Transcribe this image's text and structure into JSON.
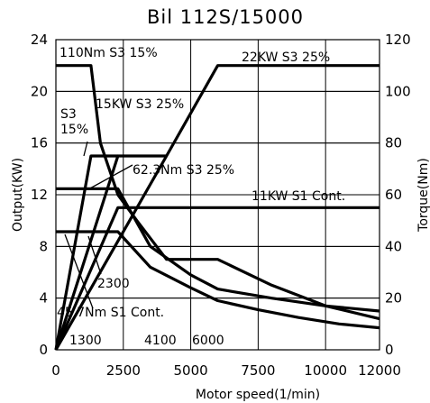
{
  "chart_data": {
    "type": "line",
    "title": "Bil 112S/15000",
    "xlabel": "Motor speed(1/min)",
    "ylabel": "Output(KW)",
    "ylabel_right": "Torque(Nm)",
    "xlim": [
      0,
      12000
    ],
    "ylim": [
      0,
      24
    ],
    "ylim_right": [
      0,
      120
    ],
    "xticks": [
      0,
      2500,
      5000,
      7500,
      10000,
      12000
    ],
    "yticks": [
      0,
      4,
      8,
      12,
      16,
      20,
      24
    ],
    "yticks_right": [
      0,
      20,
      40,
      60,
      80,
      100,
      120
    ],
    "grid": true,
    "series": [
      {
        "name": "22KW S3 25%",
        "axis": "left",
        "x": [
          0,
          4100,
          6000,
          12000
        ],
        "y": [
          0,
          15,
          22,
          22
        ]
      },
      {
        "name": "15KW S3 25%",
        "axis": "left",
        "x": [
          0,
          2300,
          4100
        ],
        "y": [
          0,
          15,
          15
        ]
      },
      {
        "name": "S3 15%",
        "axis": "left",
        "x": [
          0,
          1300,
          2300
        ],
        "y": [
          0,
          15,
          15
        ]
      },
      {
        "name": "11KW S1 Cont.",
        "axis": "left",
        "x": [
          0,
          2300,
          12000
        ],
        "y": [
          0,
          11,
          11
        ]
      },
      {
        "name": "110Nm S3 15%",
        "axis": "right",
        "x": [
          0,
          1300,
          1650,
          2300,
          3000,
          4100,
          6000,
          8000,
          10000,
          12000
        ],
        "y": [
          110,
          110,
          80,
          60,
          50,
          35,
          35,
          25,
          17,
          12
        ]
      },
      {
        "name": "62.3Nm S3 25%",
        "axis": "right",
        "x": [
          0,
          2300,
          3500,
          5000,
          6000,
          8000,
          10000,
          12000
        ],
        "y": [
          62.3,
          62.3,
          40,
          29,
          23.5,
          20,
          17,
          15
        ]
      },
      {
        "name": "45.7Nm S1 Cont.",
        "axis": "right",
        "x": [
          0,
          2300,
          3500,
          5000,
          6000,
          7500,
          9000,
          10500,
          12000
        ],
        "y": [
          45.7,
          45.7,
          32,
          24,
          19,
          15.5,
          12.5,
          10,
          8.5
        ]
      }
    ],
    "annotations": [
      {
        "text": "110Nm S3 15%"
      },
      {
        "text": "22KW S3 25%"
      },
      {
        "text": "15KW S3 25%"
      },
      {
        "text": "S3"
      },
      {
        "text": "15%"
      },
      {
        "text": "62.3Nm S3 25%"
      },
      {
        "text": "11KW S1 Cont."
      },
      {
        "text": "2300"
      },
      {
        "text": "45.7Nm S1 Cont."
      },
      {
        "text": "1300"
      },
      {
        "text": "4100"
      },
      {
        "text": "6000"
      }
    ]
  }
}
